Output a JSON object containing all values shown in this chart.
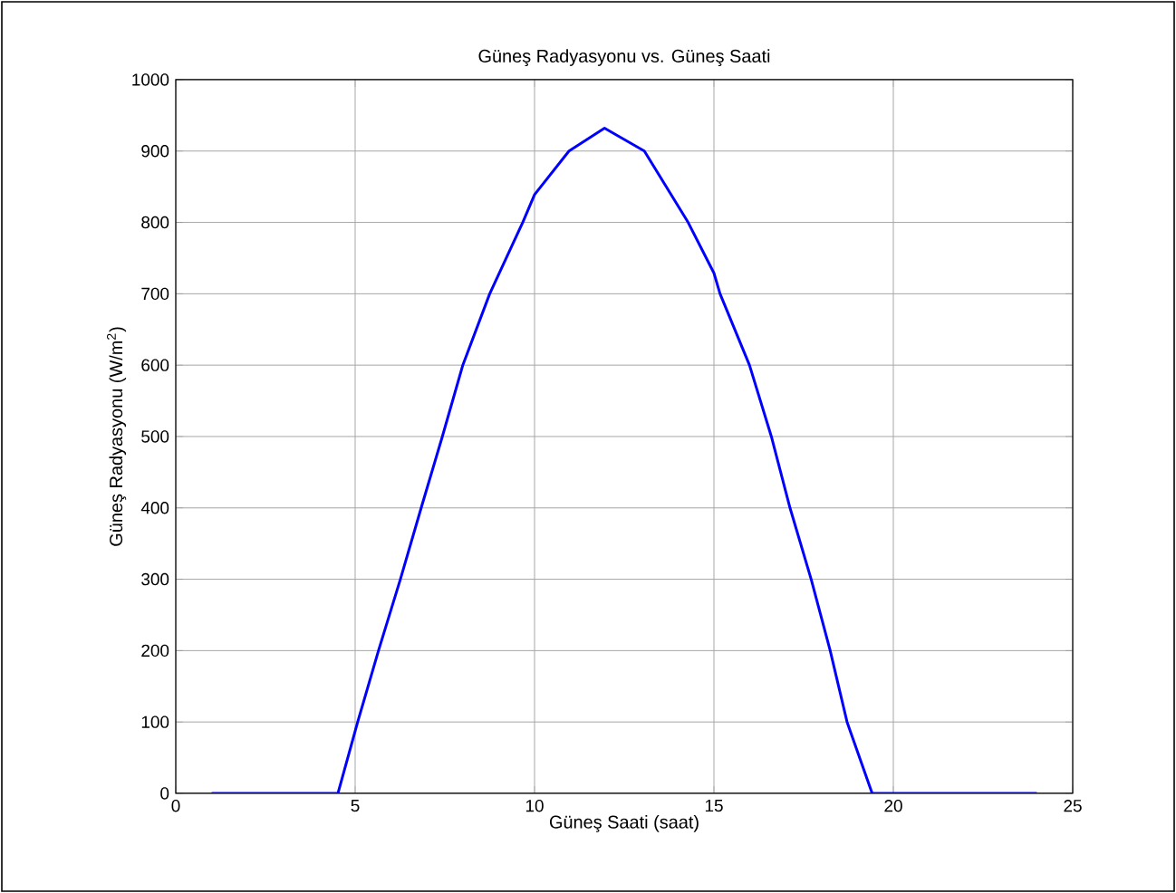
{
  "chart_data": {
    "type": "line",
    "title": "Güneş Radyasyonu vs. Güneş Saati",
    "xlabel": "Güneş Saati (saat)",
    "ylabel": "Güneş Radyasyonu (W/m$^{2}$)",
    "x": [
      1.0,
      4.52,
      5.07,
      5.65,
      6.26,
      6.84,
      7.43,
      8.0,
      8.75,
      9.67,
      10.0,
      10.96,
      11.95,
      13.06,
      14.28,
      15.0,
      15.17,
      15.99,
      16.6,
      17.12,
      17.71,
      18.24,
      18.71,
      19.41,
      24.0
    ],
    "series": [
      {
        "color": "#0000ff",
        "values": [
          0,
          0,
          100,
          200,
          300,
          400,
          500,
          600,
          700,
          800,
          839,
          900,
          932,
          900,
          800,
          729,
          700,
          600,
          500,
          400,
          300,
          200,
          100,
          0,
          0
        ]
      }
    ],
    "xlim": [
      0,
      25
    ],
    "ylim": [
      0,
      1000
    ],
    "xticks": [
      0,
      5,
      10,
      15,
      20,
      25
    ],
    "yticks": [
      0,
      100,
      200,
      300,
      400,
      500,
      600,
      700,
      800,
      900,
      1000
    ],
    "grid": true,
    "marker": "none",
    "line_style": "solid"
  }
}
